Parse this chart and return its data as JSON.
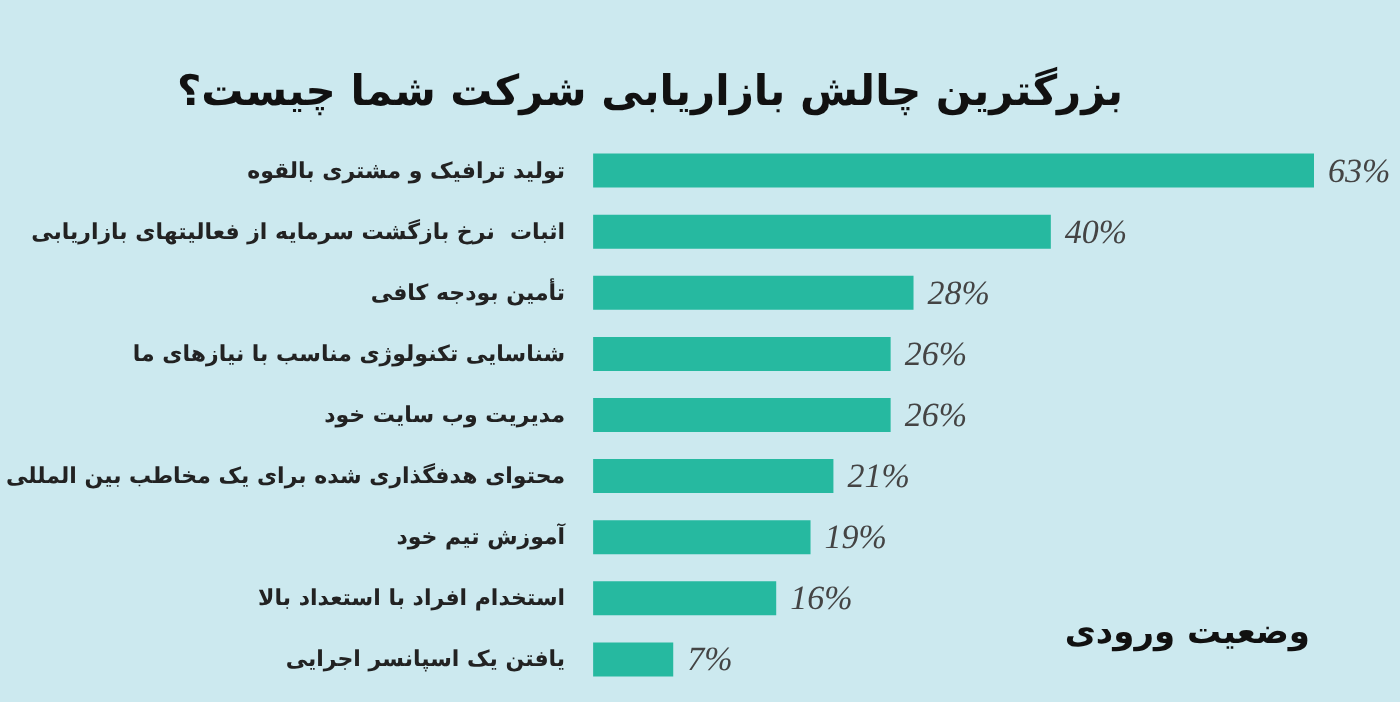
{
  "chart_data": {
    "type": "bar",
    "orientation": "horizontal",
    "title": "بزرگترین چالش بازاریابی شرکت شما چیست؟",
    "categories": [
      "تولید ترافیک و مشتری بالقوه",
      "اثبات  نرخ بازگشت سرمایه از فعالیتهای بازاریابی",
      "تأمین بودجه کافی",
      "شناسایی تکنولوژی مناسب با نیازهای ما",
      "مدیریت وب سایت خود",
      "محتوای هدفگذاری شده برای یک مخاطب بین المللی",
      "آموزش تیم خود",
      "استخدام افراد با استعداد بالا",
      "یافتن یک اسپانسر اجرایی"
    ],
    "values": [
      63,
      40,
      28,
      26,
      26,
      21,
      19,
      16,
      7
    ],
    "value_labels": [
      "63%",
      "40%",
      "28%",
      "26%",
      "26%",
      "21%",
      "19%",
      "16%",
      "7%"
    ],
    "color": "#26b9a0",
    "annotations": [
      "وضعیت ورودی"
    ]
  }
}
